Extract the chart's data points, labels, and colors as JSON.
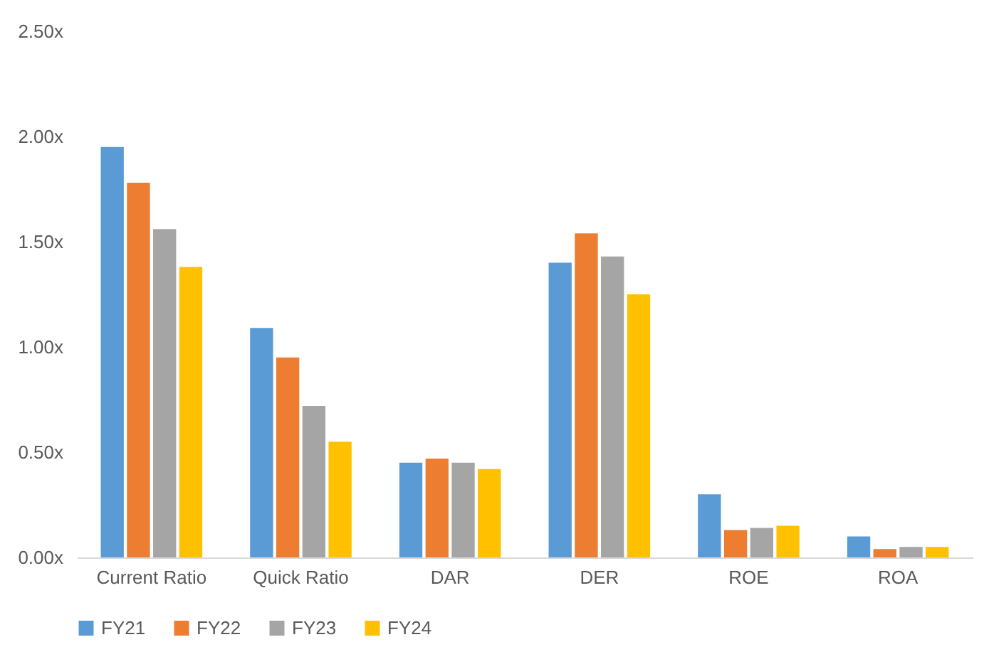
{
  "chart_data": {
    "type": "bar",
    "categories": [
      "Current Ratio",
      "Quick Ratio",
      "DAR",
      "DER",
      "ROE",
      "ROA"
    ],
    "series": [
      {
        "name": "FY21",
        "color": "#5b9bd5",
        "values": [
          1.95,
          1.09,
          0.45,
          1.4,
          0.3,
          0.1
        ]
      },
      {
        "name": "FY22",
        "color": "#ed7d31",
        "values": [
          1.78,
          0.95,
          0.47,
          1.54,
          0.13,
          0.04
        ]
      },
      {
        "name": "FY23",
        "color": "#a5a5a5",
        "values": [
          1.56,
          0.72,
          0.45,
          1.43,
          0.14,
          0.05
        ]
      },
      {
        "name": "FY24",
        "color": "#ffc000",
        "values": [
          1.38,
          0.55,
          0.42,
          1.25,
          0.15,
          0.05
        ]
      }
    ],
    "ylim": [
      0,
      2.5
    ],
    "yticks": [
      {
        "value": 0,
        "label": "0.00x"
      },
      {
        "value": 0.5,
        "label": "0.50x"
      },
      {
        "value": 1,
        "label": "1.00x"
      },
      {
        "value": 1.5,
        "label": "1.50x"
      },
      {
        "value": 2,
        "label": "2.00x"
      },
      {
        "value": 2.5,
        "label": "2.50x"
      }
    ],
    "grid": false,
    "legend": "bottom"
  }
}
